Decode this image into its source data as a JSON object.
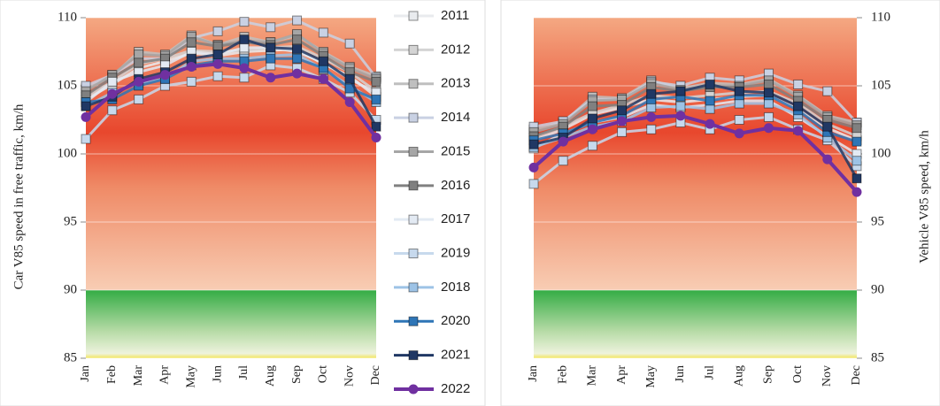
{
  "chart_data": [
    {
      "type": "line",
      "y_label": "Car V85 speed in free traffic, km/h",
      "y_axis_side": "left",
      "legend": "right",
      "categories": [
        "Jan",
        "Feb",
        "Mar",
        "Apr",
        "May",
        "Jun",
        "Jul",
        "Aug",
        "Sep",
        "Oct",
        "Nov",
        "Dec"
      ],
      "ylim": [
        85,
        110
      ],
      "yticks": [
        85,
        90,
        95,
        100,
        105,
        110
      ],
      "grid": true,
      "series": [
        {
          "name": "2011",
          "color": "#e9ebee",
          "values": [
            104,
            105.1,
            106.3,
            106.8,
            107.4,
            107.2,
            107.5,
            107.6,
            107.7,
            106.6,
            105.7,
            104.2
          ]
        },
        {
          "name": "2012",
          "color": "#d4d4d4",
          "values": [
            104.2,
            105.3,
            106.6,
            107,
            107.6,
            107.5,
            107.6,
            107.8,
            107.9,
            107,
            106,
            104.6
          ]
        },
        {
          "name": "2013",
          "color": "#bfbfbf",
          "values": [
            104.8,
            105.7,
            107.5,
            107.3,
            108.7,
            108,
            108.6,
            108.2,
            108.7,
            107.5,
            106.4,
            105.7
          ]
        },
        {
          "name": "2014",
          "color": "#c9d1e3",
          "values": [
            105,
            105.8,
            107,
            107,
            108.5,
            109,
            109.7,
            109.3,
            109.8,
            108.9,
            108.1,
            105.6
          ]
        },
        {
          "name": "2015",
          "color": "#a6a6a6",
          "values": [
            104.6,
            105.8,
            107.3,
            107.2,
            108.6,
            108,
            108.3,
            108.2,
            108.8,
            107.4,
            106.3,
            105.5
          ]
        },
        {
          "name": "2016",
          "color": "#808080",
          "values": [
            104.3,
            105.6,
            106.7,
            107,
            108.2,
            107.9,
            108.2,
            108,
            108.4,
            107.2,
            106,
            105.3
          ]
        },
        {
          "name": "2017",
          "color": "#e3eaf3",
          "values": [
            103.8,
            105.3,
            106,
            106.5,
            107.5,
            107.3,
            107.8,
            107.8,
            107.5,
            106.7,
            105.5,
            104.5
          ]
        },
        {
          "name": "2019",
          "color": "#c7d9ed",
          "values": [
            101.1,
            103.2,
            104,
            105,
            105.3,
            105.7,
            105.6,
            106.5,
            106.3,
            105.5,
            104.5,
            102.5
          ]
        },
        {
          "name": "2018",
          "color": "#9dc3e6",
          "values": [
            103.5,
            104.5,
            105.2,
            105.5,
            106.8,
            107,
            107,
            107.2,
            107.3,
            106.2,
            105,
            103.8
          ]
        },
        {
          "name": "2020",
          "color": "#2e75b6",
          "values": [
            103.8,
            104,
            105,
            105.5,
            106.5,
            106.8,
            106.8,
            107,
            107,
            106.3,
            104.8,
            104
          ]
        },
        {
          "name": "2021",
          "color": "#203864",
          "values": [
            103.5,
            104.2,
            105.5,
            106,
            107,
            107.3,
            108.4,
            107.8,
            107.7,
            106.8,
            105.5,
            102
          ]
        },
        {
          "name": "2022",
          "color": "#7030a0",
          "values": [
            102.7,
            104.4,
            105.3,
            105.8,
            106.4,
            106.6,
            106.3,
            105.6,
            105.9,
            105.5,
            103.8,
            101.2
          ]
        }
      ]
    },
    {
      "type": "line",
      "y_label": "Vehicle V85 speed, km/h",
      "y_axis_side": "right",
      "categories": [
        "Jan",
        "Feb",
        "Mar",
        "Apr",
        "May",
        "Jun",
        "Jul",
        "Aug",
        "Sep",
        "Oct",
        "Nov",
        "Dec"
      ],
      "ylim": [
        85,
        110
      ],
      "yticks": [
        85,
        90,
        95,
        100,
        105,
        110
      ],
      "grid": true,
      "series": [
        {
          "color": "#e9ebee",
          "values": [
            101,
            101.8,
            102.9,
            103.4,
            104,
            103.8,
            104,
            104.2,
            104.3,
            103.3,
            101.9,
            101
          ]
        },
        {
          "color": "#d4d4d4",
          "values": [
            101.2,
            102,
            103,
            103.6,
            104.3,
            104.1,
            104.3,
            104.5,
            104.6,
            103.7,
            102.2,
            101.3
          ]
        },
        {
          "color": "#bfbfbf",
          "values": [
            101.8,
            102.3,
            104.2,
            104.1,
            105.4,
            104.8,
            105.2,
            105.1,
            105.5,
            104.3,
            102.8,
            102.3
          ]
        },
        {
          "color": "#c9d1e3",
          "values": [
            102,
            102.4,
            104,
            104,
            105.3,
            105,
            105.6,
            105.4,
            105.9,
            105.1,
            104.6,
            102.3
          ]
        },
        {
          "color": "#a6a6a6",
          "values": [
            101.6,
            102.2,
            103.9,
            104,
            105.2,
            104.7,
            105,
            105,
            105.4,
            104.2,
            102.7,
            102.1
          ]
        },
        {
          "color": "#808080",
          "values": [
            101.3,
            102,
            103.5,
            103.6,
            104.9,
            104.6,
            104.9,
            104.9,
            105.1,
            103.9,
            102.5,
            101.9
          ]
        },
        {
          "color": "#e3eaf3",
          "values": [
            100.4,
            101.5,
            102.3,
            102.7,
            103.6,
            103.4,
            103.6,
            103.9,
            103.9,
            102.7,
            101.3,
            100
          ]
        },
        {
          "color": "#c7d9ed",
          "values": [
            97.8,
            99.5,
            100.6,
            101.6,
            101.8,
            102.3,
            101.8,
            102.5,
            102.7,
            101.8,
            101,
            99.1
          ]
        },
        {
          "color": "#9dc3e6",
          "values": [
            100.5,
            101.2,
            102,
            102.4,
            103.4,
            103.5,
            103.3,
            103.7,
            103.7,
            102.9,
            101.2,
            99.5
          ]
        },
        {
          "color": "#2e75b6",
          "values": [
            101,
            101.5,
            102.3,
            102.8,
            104,
            104.2,
            103.9,
            104.3,
            104.3,
            103.2,
            101.6,
            100.9
          ]
        },
        {
          "color": "#203864",
          "values": [
            100.7,
            101.2,
            102.6,
            103.2,
            104.4,
            104.6,
            105.1,
            104.6,
            104.5,
            103.5,
            102,
            98.2
          ]
        },
        {
          "color": "#7030a0",
          "values": [
            99,
            100.9,
            101.8,
            102.4,
            102.7,
            102.8,
            102.2,
            101.5,
            101.9,
            101.7,
            99.6,
            97.2
          ]
        }
      ]
    }
  ]
}
